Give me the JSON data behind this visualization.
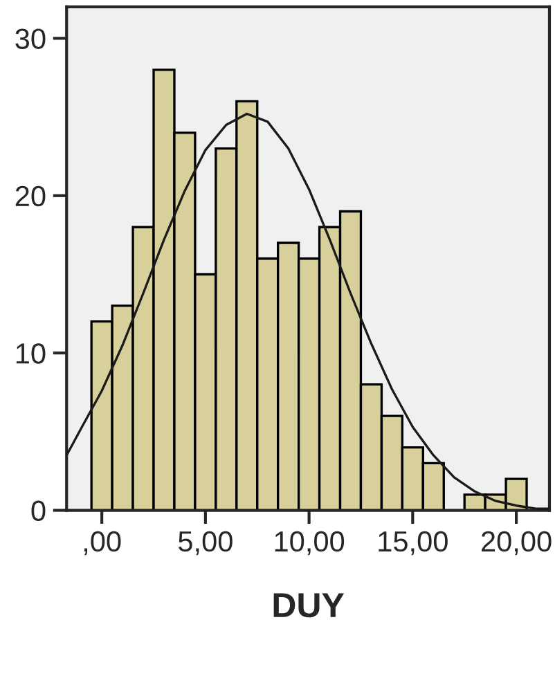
{
  "chart_data": {
    "type": "histogram",
    "xlabel": "DUY",
    "bins": [
      -0.5,
      0.5,
      1.5,
      2.5,
      3.5,
      4.5,
      5.5,
      6.5,
      7.5,
      8.5,
      9.5,
      10.5,
      11.5,
      12.5,
      13.5,
      14.5,
      15.5,
      16.5,
      17.5,
      18.5,
      19.5,
      20.5
    ],
    "values": [
      12,
      13,
      18,
      28,
      24,
      15,
      23,
      26,
      16,
      17,
      16,
      18,
      19,
      8,
      6,
      4,
      3,
      0,
      1,
      1,
      2
    ],
    "color": "#d8d09a",
    "series": [
      {
        "type": "line",
        "color": "#1a1a1a",
        "x": [
          -1.7,
          -1,
          0,
          1,
          2,
          3,
          4,
          5,
          6,
          7,
          8,
          9,
          10,
          11,
          12,
          13,
          14,
          15,
          16,
          17,
          18,
          19,
          20,
          21,
          21.6
        ],
        "values": [
          3.5,
          5.2,
          7.6,
          10.5,
          13.8,
          17.2,
          20.3,
          22.9,
          24.5,
          25.2,
          24.7,
          23.0,
          20.4,
          17.2,
          13.8,
          10.6,
          7.7,
          5.3,
          3.5,
          2.1,
          1.2,
          0.6,
          0.3,
          0.1,
          0.1
        ]
      }
    ],
    "xlim": [
      -1.7,
      21.6
    ],
    "ylim": [
      0,
      32
    ],
    "xticks": [
      {
        "value": 0,
        "label": ",00"
      },
      {
        "value": 5,
        "label": "5,00"
      },
      {
        "value": 10,
        "label": "10,00"
      },
      {
        "value": 15,
        "label": "15,00"
      },
      {
        "value": 20,
        "label": "20,00"
      }
    ],
    "yticks": [
      0,
      10,
      20,
      30
    ],
    "grid": false
  }
}
